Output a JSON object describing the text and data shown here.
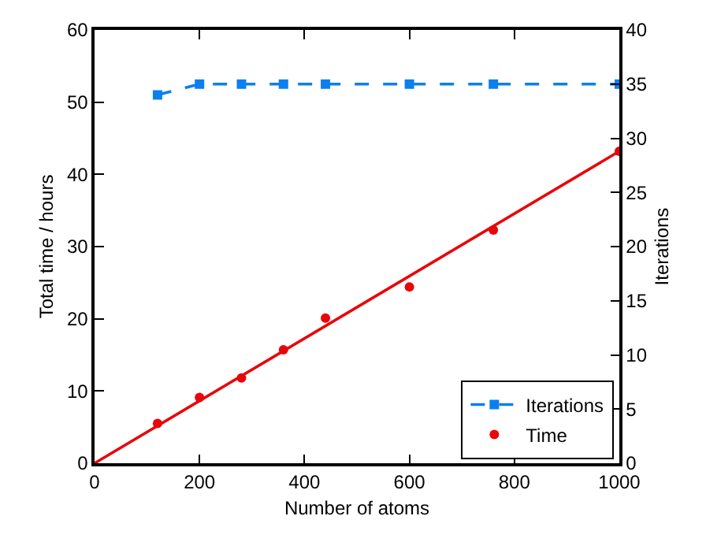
{
  "chart_data": {
    "type": "line",
    "xlabel": "Number of atoms",
    "ylabel": "Total time / hours",
    "y2label": "Iterations",
    "xlim": [
      0,
      1000
    ],
    "xticks": [
      0,
      200,
      400,
      600,
      800,
      1000
    ],
    "ylim": [
      0,
      60
    ],
    "yticks": [
      0,
      10,
      20,
      30,
      40,
      50,
      60
    ],
    "y2lim": [
      0,
      40
    ],
    "y2ticks": [
      0,
      5,
      10,
      15,
      20,
      25,
      30,
      35,
      40
    ],
    "legend": "bottom right",
    "series": [
      {
        "name": "Iterations",
        "axis": "y2",
        "color": "#0a7ff0",
        "marker": "square",
        "line_style": "dashed",
        "x": [
          120,
          200,
          280,
          360,
          440,
          600,
          760,
          1000
        ],
        "values": [
          34,
          35,
          35,
          35,
          35,
          35,
          35,
          35
        ]
      },
      {
        "name": "Time",
        "type": "scatter",
        "color": "#e8060a",
        "marker": "circle",
        "x": [
          120,
          200,
          280,
          360,
          440,
          600,
          760,
          1000
        ],
        "values": [
          5.5,
          9.1,
          11.8,
          15.7,
          20.1,
          24.4,
          32.3,
          43.2
        ]
      },
      {
        "type": "line",
        "color": "#e8060a",
        "marker": "none",
        "line_style": "solid",
        "x": [
          0,
          1000
        ],
        "values": [
          0,
          43.2
        ]
      }
    ]
  }
}
